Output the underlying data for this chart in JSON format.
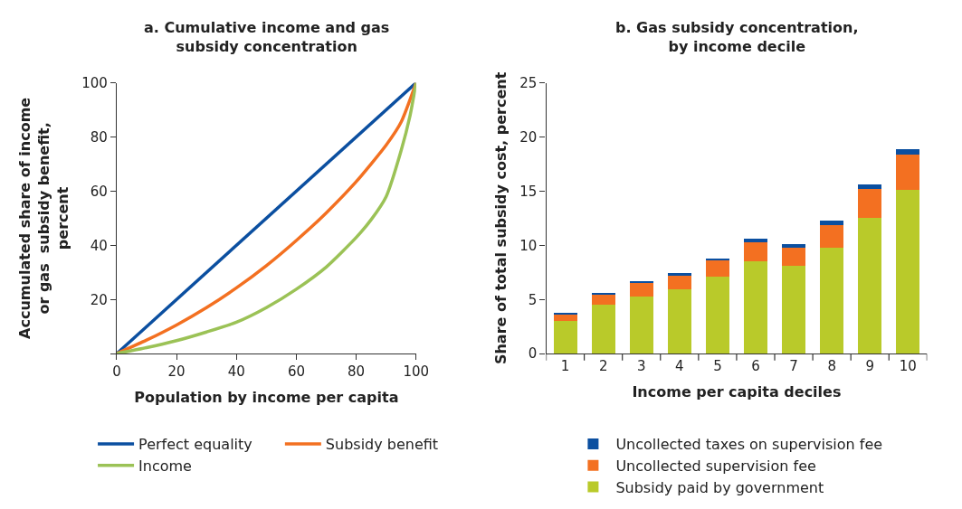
{
  "chart_data": [
    {
      "type": "line",
      "title": "a. Cumulative income and gas subsidy concentration",
      "xlabel": "Population by income per capita",
      "ylabel": "Accumulated share of income or gas  subsidy benefit, percent",
      "xlim": [
        0,
        100
      ],
      "xticks": [
        0,
        20,
        40,
        60,
        80,
        100
      ],
      "ylim": [
        0,
        100
      ],
      "yticks": [
        {
          "value": 0,
          "label": null
        },
        20,
        40,
        60,
        80,
        100
      ],
      "legend": "bottom",
      "marker": "none",
      "line_style": "solid",
      "series": [
        {
          "name": "Perfect equality",
          "color": "#0b4fa0",
          "x": [
            0,
            100
          ],
          "values": [
            0,
            100
          ]
        },
        {
          "name": "Subsidy benefit",
          "color": "#f37021",
          "x": [
            0,
            10,
            20,
            30,
            40,
            50,
            60,
            70,
            80,
            90,
            95,
            100
          ],
          "values": [
            0,
            5,
            10.6,
            17,
            24.3,
            32.5,
            41.8,
            52,
            63.5,
            77,
            85.5,
            100
          ]
        },
        {
          "name": "Income",
          "color": "#9bc256",
          "x": [
            0,
            10,
            20,
            30,
            40,
            50,
            60,
            70,
            80,
            85,
            90,
            95,
            98,
            100
          ],
          "values": [
            0,
            2.2,
            4.8,
            8,
            11.6,
            17,
            23.8,
            32,
            42.9,
            49.5,
            58,
            75,
            88,
            100
          ]
        }
      ]
    },
    {
      "type": "bar",
      "stacked": true,
      "title": "b. Gas subsidy concentration, by income decile",
      "xlabel": "Income per capita deciles",
      "ylabel": "Share of total subsidy cost, percent",
      "categories": [
        "1",
        "2",
        "3",
        "4",
        "5",
        "6",
        "7",
        "8",
        "9",
        "10"
      ],
      "ylim": [
        0,
        25
      ],
      "yticks": [
        0,
        5,
        10,
        15,
        20,
        25
      ],
      "legend": "bottom",
      "series": [
        {
          "name": "Subsidy paid by government",
          "color": "#b9ca2a",
          "values": [
            3.0,
            4.5,
            5.3,
            5.9,
            7.1,
            8.5,
            8.1,
            9.8,
            12.5,
            15.1
          ]
        },
        {
          "name": "Uncollected supervision fee",
          "color": "#f37021",
          "values": [
            0.7,
            1.0,
            1.2,
            1.3,
            1.5,
            1.8,
            1.7,
            2.1,
            2.7,
            3.3
          ]
        },
        {
          "name": "Uncollected taxes on supervision fee",
          "color": "#0b4fa0",
          "values": [
            0.1,
            0.1,
            0.2,
            0.2,
            0.2,
            0.3,
            0.3,
            0.4,
            0.4,
            0.5
          ]
        }
      ]
    }
  ]
}
